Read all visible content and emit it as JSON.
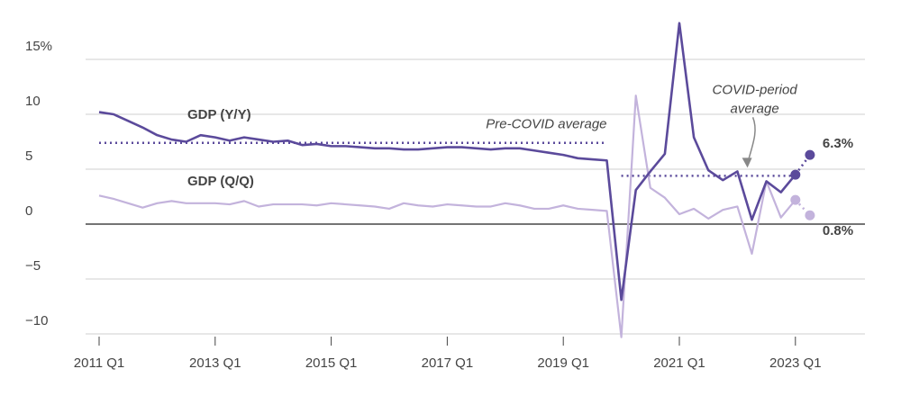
{
  "chart_data": {
    "type": "line",
    "categories": [
      "2011 Q1",
      null,
      null,
      null,
      null,
      null,
      null,
      null,
      "2013 Q1",
      null,
      null,
      null,
      null,
      null,
      null,
      null,
      "2015 Q1",
      null,
      null,
      null,
      null,
      null,
      null,
      null,
      "2017 Q1",
      null,
      null,
      null,
      null,
      null,
      null,
      null,
      "2019 Q1",
      null,
      null,
      null,
      null,
      null,
      null,
      null,
      "2021 Q1",
      null,
      null,
      null,
      null,
      null,
      null,
      null,
      "2023 Q1",
      null
    ],
    "series": [
      {
        "name": "GDP (Y/Y)",
        "color": "#5b4a9b",
        "values": [
          10.2,
          10.0,
          9.4,
          8.8,
          8.1,
          7.7,
          7.5,
          8.1,
          7.9,
          7.6,
          7.9,
          7.7,
          7.5,
          7.6,
          7.2,
          7.3,
          7.1,
          7.1,
          7.0,
          6.9,
          6.9,
          6.8,
          6.8,
          6.9,
          7.0,
          7.0,
          6.9,
          6.8,
          6.9,
          6.9,
          6.7,
          6.5,
          6.3,
          6.0,
          5.9,
          5.8,
          -6.9,
          3.1,
          4.8,
          6.4,
          18.3,
          7.9,
          4.9,
          4.0,
          4.8,
          0.4,
          3.9,
          2.9,
          4.5,
          6.3
        ],
        "value_labels": [
          null,
          null,
          null,
          null,
          null,
          null,
          null,
          null,
          null,
          null,
          null,
          null,
          null,
          null,
          null,
          null,
          null,
          null,
          null,
          null,
          null,
          null,
          null,
          null,
          null,
          null,
          null,
          null,
          null,
          null,
          null,
          null,
          null,
          null,
          null,
          null,
          null,
          null,
          null,
          null,
          null,
          null,
          null,
          null,
          null,
          null,
          null,
          null,
          null,
          "6.3%"
        ]
      },
      {
        "name": "GDP (Q/Q)",
        "color": "#c3b3dc",
        "values": [
          2.6,
          2.3,
          1.9,
          1.5,
          1.9,
          2.1,
          1.9,
          1.9,
          1.9,
          1.8,
          2.1,
          1.6,
          1.8,
          1.8,
          1.8,
          1.7,
          1.9,
          1.8,
          1.7,
          1.6,
          1.4,
          1.9,
          1.7,
          1.6,
          1.8,
          1.7,
          1.6,
          1.6,
          1.9,
          1.7,
          1.4,
          1.4,
          1.7,
          1.4,
          1.3,
          1.2,
          -10.3,
          11.7,
          3.3,
          2.4,
          0.9,
          1.4,
          0.5,
          1.3,
          1.6,
          -2.7,
          3.9,
          0.6,
          2.2,
          0.8
        ],
        "value_labels": [
          null,
          null,
          null,
          null,
          null,
          null,
          null,
          null,
          null,
          null,
          null,
          null,
          null,
          null,
          null,
          null,
          null,
          null,
          null,
          null,
          null,
          null,
          null,
          null,
          null,
          null,
          null,
          null,
          null,
          null,
          null,
          null,
          null,
          null,
          null,
          null,
          null,
          null,
          null,
          null,
          null,
          null,
          null,
          null,
          null,
          null,
          null,
          null,
          null,
          "0.8%"
        ]
      }
    ],
    "reference_lines": [
      {
        "label": [
          "Pre-COVID average"
        ],
        "value": 7.4,
        "start": 0,
        "end": 35
      },
      {
        "label": [
          "COVID-period",
          "average"
        ],
        "value": 4.4,
        "start": 36,
        "end": 48
      }
    ],
    "ylim": [
      -10.5,
      18.5
    ],
    "yticks": [
      {
        "value": -10,
        "label": "−10"
      },
      {
        "value": -5,
        "label": "−5"
      },
      0,
      5,
      10,
      {
        "value": 15,
        "label": "15%"
      }
    ],
    "grid": true
  }
}
